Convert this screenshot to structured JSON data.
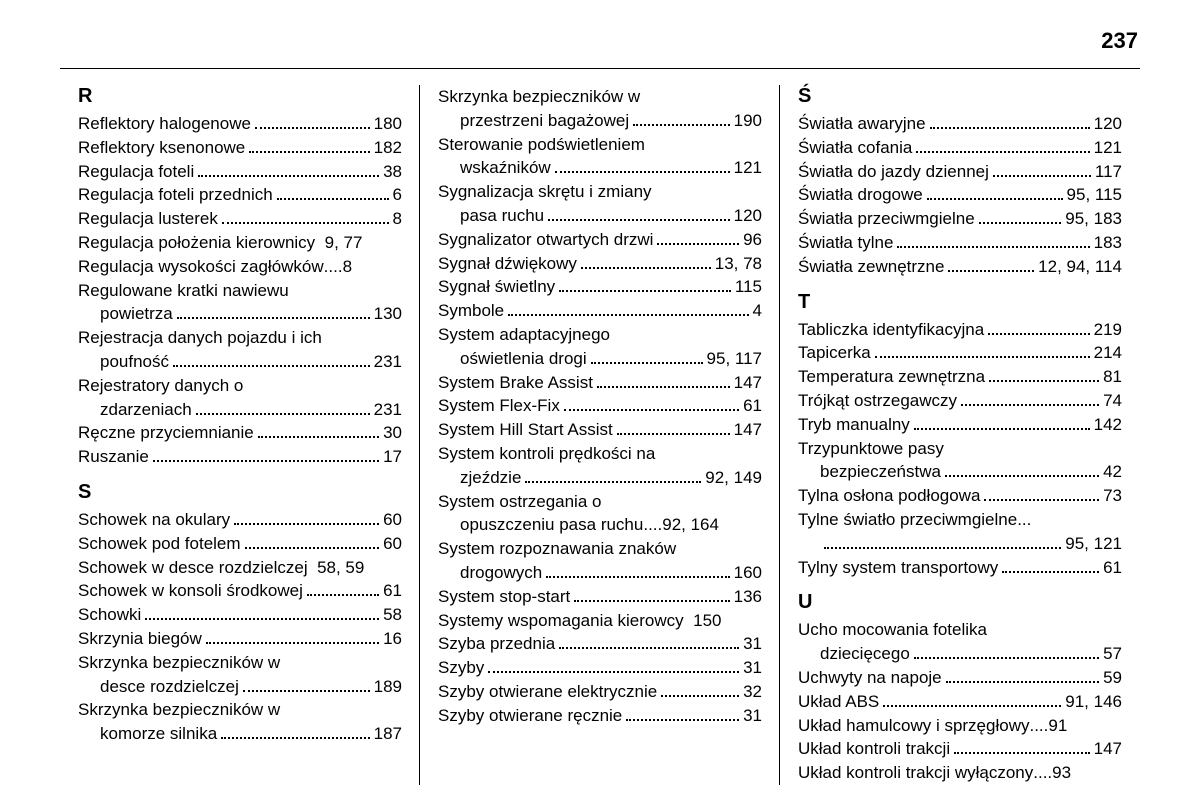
{
  "page_number": "237",
  "columns": [
    {
      "sections": [
        {
          "header": "R",
          "entries": [
            {
              "label": "Reflektory halogenowe",
              "page": "180"
            },
            {
              "label": "Reflektory ksenonowe",
              "page": "182"
            },
            {
              "label": "Regulacja foteli",
              "page": "38"
            },
            {
              "label": "Regulacja foteli przednich",
              "page": "6"
            },
            {
              "label": "Regulacja lusterek",
              "page": "8"
            },
            {
              "label": "Regulacja położenia kierownicy",
              "page": "9, 77",
              "nodots": true
            },
            {
              "label": "Regulacja wysokości zagłówków",
              "page": "8",
              "nodots": false,
              "shortdots": true
            },
            {
              "label": "Regulowane kratki nawiewu",
              "cont": true
            },
            {
              "label": "powietrza",
              "page": "130",
              "indent": true
            },
            {
              "label": "Rejestracja danych pojazdu i ich",
              "cont": true
            },
            {
              "label": "poufność",
              "page": "231",
              "indent": true
            },
            {
              "label": "Rejestratory danych o",
              "cont": true
            },
            {
              "label": "zdarzeniach",
              "page": "231",
              "indent": true
            },
            {
              "label": "Ręczne przyciemnianie",
              "page": "30"
            },
            {
              "label": "Ruszanie",
              "page": "17"
            }
          ]
        },
        {
          "header": "S",
          "entries": [
            {
              "label": "Schowek na okulary",
              "page": "60"
            },
            {
              "label": "Schowek pod fotelem",
              "page": "60"
            },
            {
              "label": "Schowek w desce rozdzielczej",
              "page": "58, 59",
              "nodots": true
            },
            {
              "label": "Schowek w konsoli środkowej",
              "page": "61"
            },
            {
              "label": "Schowki",
              "page": "58"
            },
            {
              "label": "Skrzynia biegów",
              "page": "16"
            },
            {
              "label": "Skrzynka bezpieczników w",
              "cont": true
            },
            {
              "label": "desce rozdzielczej",
              "page": "189",
              "indent": true
            },
            {
              "label": "Skrzynka bezpieczników w",
              "cont": true
            },
            {
              "label": "komorze silnika",
              "page": "187",
              "indent": true
            }
          ]
        }
      ]
    },
    {
      "sections": [
        {
          "header": "",
          "entries": [
            {
              "label": "Skrzynka bezpieczników w",
              "cont": true
            },
            {
              "label": "przestrzeni bagażowej",
              "page": "190",
              "indent": true
            },
            {
              "label": "Sterowanie podświetleniem",
              "cont": true
            },
            {
              "label": "wskaźników",
              "page": "121",
              "indent": true
            },
            {
              "label": "Sygnalizacja skrętu i zmiany",
              "cont": true
            },
            {
              "label": "pasa ruchu",
              "page": "120",
              "indent": true
            },
            {
              "label": "Sygnalizator otwartych drzwi",
              "page": "96"
            },
            {
              "label": "Sygnał dźwiękowy",
              "page": "13, 78"
            },
            {
              "label": "Sygnał świetlny",
              "page": "115"
            },
            {
              "label": "Symbole",
              "page": "4"
            },
            {
              "label": "System adaptacyjnego",
              "cont": true
            },
            {
              "label": "oświetlenia drogi",
              "page": "95, 117",
              "indent": true
            },
            {
              "label": "System Brake Assist",
              "page": "147"
            },
            {
              "label": "System Flex-Fix",
              "page": "61"
            },
            {
              "label": "System Hill Start Assist",
              "page": "147"
            },
            {
              "label": "System kontroli prędkości na",
              "cont": true
            },
            {
              "label": "zjeździe",
              "page": "92, 149",
              "indent": true
            },
            {
              "label": "System ostrzegania o",
              "cont": true
            },
            {
              "label": "opuszczeniu pasa ruchu",
              "page": "92, 164",
              "indent": true,
              "shortdots": true
            },
            {
              "label": "System rozpoznawania znaków",
              "cont": true
            },
            {
              "label": "drogowych",
              "page": "160",
              "indent": true
            },
            {
              "label": "System stop-start",
              "page": "136"
            },
            {
              "label": "Systemy wspomagania kierowcy",
              "page": "150",
              "nodots": true
            },
            {
              "label": "Szyba przednia",
              "page": "31"
            },
            {
              "label": "Szyby",
              "page": "31"
            },
            {
              "label": "Szyby otwierane elektrycznie",
              "page": "32"
            },
            {
              "label": "Szyby otwierane ręcznie",
              "page": "31"
            }
          ]
        }
      ]
    },
    {
      "sections": [
        {
          "header": "Ś",
          "entries": [
            {
              "label": "Światła awaryjne",
              "page": "120"
            },
            {
              "label": "Światła cofania",
              "page": "121"
            },
            {
              "label": "Światła do jazdy dziennej",
              "page": "117"
            },
            {
              "label": "Światła drogowe",
              "page": "95, 115"
            },
            {
              "label": "Światła przeciwmgielne",
              "page": "95, 183"
            },
            {
              "label": "Światła tylne",
              "page": "183"
            },
            {
              "label": "Światła zewnętrzne",
              "page": "12, 94, 114"
            }
          ]
        },
        {
          "header": "T",
          "entries": [
            {
              "label": "Tabliczka identyfikacyjna",
              "page": "219"
            },
            {
              "label": "Tapicerka",
              "page": "214"
            },
            {
              "label": "Temperatura zewnętrzna",
              "page": "81"
            },
            {
              "label": "Trójkąt ostrzegawczy",
              "page": "74"
            },
            {
              "label": "Tryb manualny",
              "page": "142"
            },
            {
              "label": "Trzypunktowe pasy",
              "cont": true
            },
            {
              "label": "bezpieczeństwa",
              "page": "42",
              "indent": true
            },
            {
              "label": "Tylna osłona podłogowa",
              "page": "73"
            },
            {
              "label": "Tylne światło przeciwmgielne",
              "cont": true,
              "shortdots": true,
              "contdots": true
            },
            {
              "label": "",
              "page": "95, 121",
              "indent": true
            },
            {
              "label": "Tylny system transportowy",
              "page": "61"
            }
          ]
        },
        {
          "header": "U",
          "entries": [
            {
              "label": "Ucho mocowania fotelika",
              "cont": true
            },
            {
              "label": "dziecięcego",
              "page": "57",
              "indent": true
            },
            {
              "label": "Uchwyty na napoje",
              "page": "59"
            },
            {
              "label": "Układ ABS",
              "page": "91, 146"
            },
            {
              "label": "Układ hamulcowy i sprzęgłowy",
              "page": "91",
              "shortdots": true
            },
            {
              "label": "Układ kontroli trakcji",
              "page": "147"
            },
            {
              "label": "Układ kontroli trakcji wyłączony",
              "page": "93",
              "shortdots": true
            }
          ]
        }
      ]
    }
  ]
}
